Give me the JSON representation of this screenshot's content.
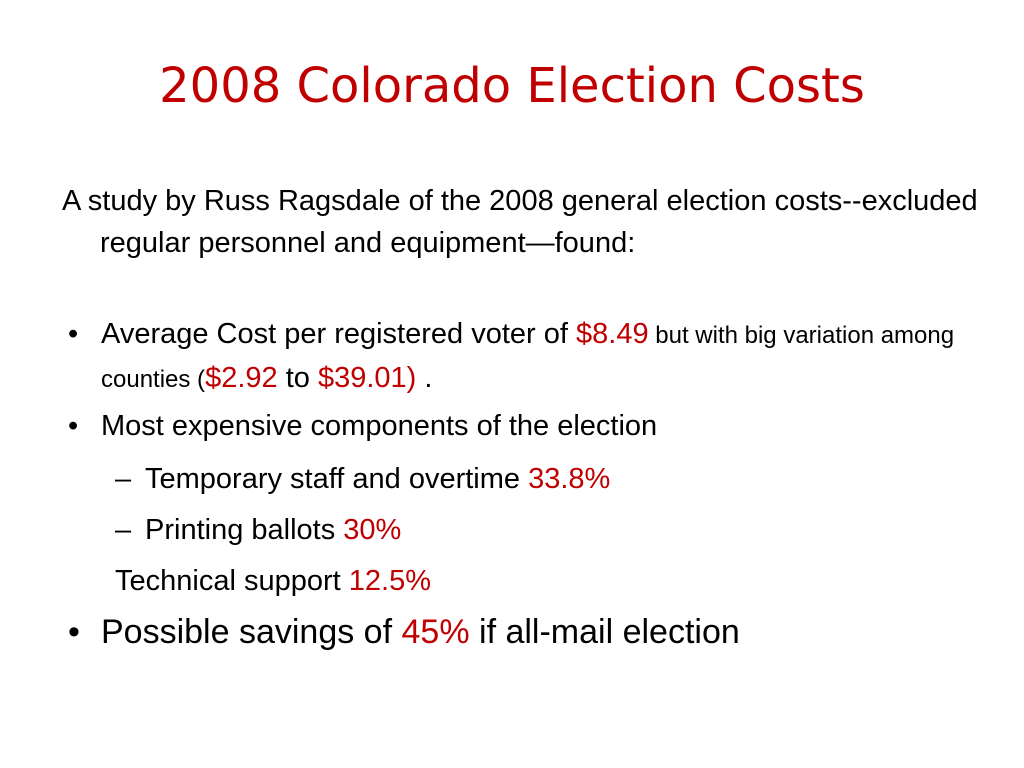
{
  "title": "2008 Colorado Election Costs",
  "intro": "A study by Russ Ragsdale of the 2008 general election costs--excluded regular personnel and equipment—found:",
  "bullets": [
    {
      "runs": [
        "Average Cost per registered voter of ",
        "$8.49",
        " but with big variation among counties (",
        "$2.92",
        " to ",
        "$39.01)",
        " ."
      ]
    },
    {
      "text": "Most expensive components of the election",
      "subitems": [
        {
          "runs": [
            "Temporary staff and overtime ",
            "33.8%"
          ]
        },
        {
          "runs": [
            "Printing ballots ",
            "30%"
          ]
        },
        {
          "runs": [
            "Technical support ",
            "12.5%"
          ]
        }
      ]
    },
    {
      "runs": [
        "Possible savings of ",
        "45%",
        " if all-mail election"
      ]
    }
  ]
}
